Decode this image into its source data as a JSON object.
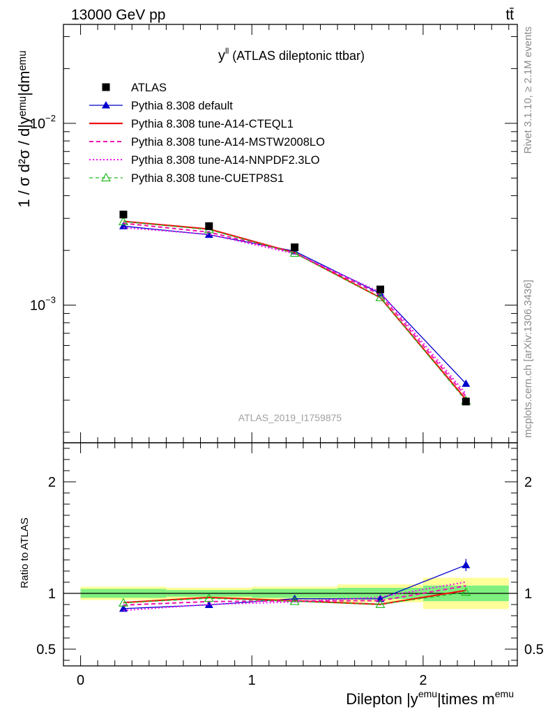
{
  "header": {
    "left": "13000 GeV pp",
    "right": "tt̄"
  },
  "side_labels": {
    "rivet": "Rivet 3.1.10, ≥ 2.1M events",
    "mcplots": "mcplots.cern.ch [arXiv:1306.3436]"
  },
  "plot_title": {
    "main": "y",
    "sup": "ll",
    "rest": " (ATLAS dileptonic ttbar)"
  },
  "watermark": "ATLAS_2019_I1759875",
  "colors": {
    "atlas": "#000000",
    "default": "#0000cc",
    "cteql1": "#ee1111",
    "mstw": "#ee11aa",
    "nnpdf": "#ee11ee",
    "cuetp": "#22bb22",
    "band_inner": "#7fef7f",
    "band_outer": "#ffff99"
  },
  "chart_data": {
    "type": "line",
    "x": [
      0.25,
      0.75,
      1.25,
      1.75,
      2.25
    ],
    "bin_edges": [
      0,
      0.5,
      1.0,
      1.5,
      2.0,
      2.5
    ],
    "main_panel": {
      "ylabel": "1 / σ d²σ / d|yᵉᵐᵘ|dmᵉᵐᵘ",
      "ylog": true,
      "ylim": [
        0.000175,
        0.035
      ],
      "yticks": [
        {
          "value": 0.001,
          "base": "10",
          "exp": "−3"
        },
        {
          "value": 0.01,
          "base": "10",
          "exp": "−2"
        }
      ]
    },
    "ratio_panel": {
      "ylabel": "Ratio to ATLAS",
      "ylim": [
        0.35,
        2.35
      ],
      "yticks": [
        {
          "value": 0.5,
          "label": "0.5"
        },
        {
          "value": 1,
          "label": "1"
        },
        {
          "value": 2,
          "label": "2"
        }
      ],
      "band_inner": [
        0.04,
        0.03,
        0.04,
        0.05,
        0.07
      ],
      "band_outer": [
        0.06,
        0.05,
        0.06,
        0.08,
        0.14
      ]
    },
    "xlabel": {
      "pre": "Dilepton |y",
      "sup1": "emu",
      "mid": "|times m",
      "sup2": "emu"
    },
    "xlim": [
      -0.1,
      2.55
    ],
    "xticks": [
      {
        "value": 0,
        "label": "0"
      },
      {
        "value": 1,
        "label": "1"
      },
      {
        "value": 2,
        "label": "2"
      }
    ],
    "atlas": {
      "name": "ATLAS",
      "values": [
        0.00315,
        0.00272,
        0.00208,
        0.00122,
        0.000295
      ]
    },
    "series": [
      {
        "name": "Pythia 8.308 default",
        "key": "default",
        "dash": "",
        "width": 1.3,
        "marker": "tri",
        "values": [
          0.00272,
          0.00244,
          0.00198,
          0.00116,
          0.00037
        ],
        "errors": [
          3e-05,
          3e-05,
          2e-05,
          2e-05,
          1e-05
        ]
      },
      {
        "name": "Pythia 8.308 tune-A14-CTEQL1",
        "key": "cteql1",
        "dash": "",
        "width": 2.2,
        "marker": "none",
        "values": [
          0.00289,
          0.00262,
          0.00194,
          0.0011,
          0.000303
        ],
        "errors": [
          0,
          0,
          0,
          0,
          0
        ]
      },
      {
        "name": "Pythia 8.308 tune-A14-MSTW2008LO",
        "key": "mstw",
        "dash": "6,4",
        "width": 2,
        "marker": "none",
        "values": [
          0.00282,
          0.00252,
          0.00194,
          0.00114,
          0.000315
        ],
        "errors": [
          0,
          0,
          0,
          0,
          0
        ]
      },
      {
        "name": "Pythia 8.308 tune-A14-NNPDF2.3LO",
        "key": "nnpdf",
        "dash": "2,3",
        "width": 2,
        "marker": "none",
        "values": [
          0.00267,
          0.00245,
          0.00192,
          0.00118,
          0.000325
        ],
        "errors": [
          0,
          0,
          0,
          0,
          0
        ]
      },
      {
        "name": "Pythia 8.308 tune-CUETP8S1",
        "key": "cuetp",
        "dash": "5,4",
        "width": 1.3,
        "marker": "otri",
        "values": [
          0.00288,
          0.0026,
          0.00193,
          0.0011,
          0.000298
        ],
        "errors": [
          0,
          0,
          0,
          0,
          0
        ]
      }
    ]
  }
}
